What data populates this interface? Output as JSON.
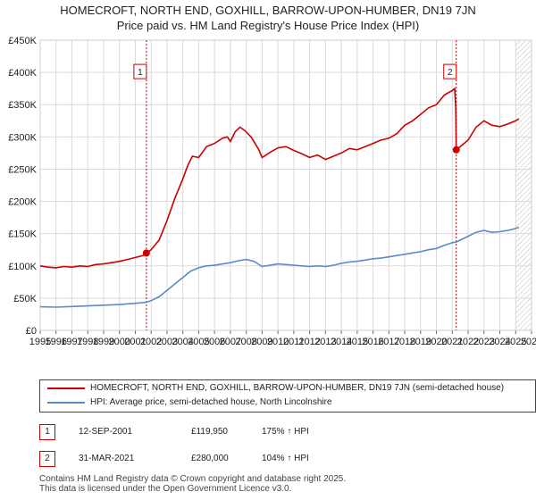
{
  "chart_data": {
    "type": "line",
    "title": "HOMECROFT, NORTH END, GOXHILL, BARROW-UPON-HUMBER, DN19 7JN",
    "subtitle": "Price paid vs. HM Land Registry's House Price Index (HPI)",
    "xlim": [
      1995,
      2026
    ],
    "ylim": [
      0,
      450000
    ],
    "x_ticks": [
      "1995",
      "1996",
      "1997",
      "1998",
      "1999",
      "2000",
      "2001",
      "2002",
      "2003",
      "2004",
      "2005",
      "2006",
      "2007",
      "2008",
      "2009",
      "2010",
      "2011",
      "2012",
      "2013",
      "2014",
      "2015",
      "2016",
      "2017",
      "2018",
      "2019",
      "2020",
      "2021",
      "2022",
      "2023",
      "2024",
      "2025",
      "2026"
    ],
    "y_ticks": [
      {
        "value": 0,
        "label": "£0"
      },
      {
        "value": 50000,
        "label": "£50K"
      },
      {
        "value": 100000,
        "label": "£100K"
      },
      {
        "value": 150000,
        "label": "£150K"
      },
      {
        "value": 200000,
        "label": "£200K"
      },
      {
        "value": 250000,
        "label": "£250K"
      },
      {
        "value": 300000,
        "label": "£300K"
      },
      {
        "value": 350000,
        "label": "£350K"
      },
      {
        "value": 400000,
        "label": "£400K"
      },
      {
        "value": 450000,
        "label": "£450K"
      }
    ],
    "grid": true,
    "forecast_from": 2025.0,
    "series": [
      {
        "name": "HOMECROFT, NORTH END, GOXHILL, BARROW-UPON-HUMBER, DN19 7JN (semi-detached house)",
        "color": "#cc0000",
        "points": [
          [
            1995.0,
            100000
          ],
          [
            1995.5,
            98000
          ],
          [
            1996.0,
            97000
          ],
          [
            1996.5,
            99000
          ],
          [
            1997.0,
            98000
          ],
          [
            1997.5,
            100000
          ],
          [
            1998.0,
            99000
          ],
          [
            1998.5,
            102000
          ],
          [
            1999.0,
            103000
          ],
          [
            1999.5,
            105000
          ],
          [
            2000.0,
            107000
          ],
          [
            2000.5,
            110000
          ],
          [
            2001.0,
            113000
          ],
          [
            2001.5,
            116000
          ],
          [
            2001.7,
            119950
          ],
          [
            2002.0,
            125000
          ],
          [
            2002.5,
            140000
          ],
          [
            2003.0,
            170000
          ],
          [
            2003.5,
            205000
          ],
          [
            2004.0,
            235000
          ],
          [
            2004.3,
            255000
          ],
          [
            2004.6,
            270000
          ],
          [
            2005.0,
            268000
          ],
          [
            2005.5,
            285000
          ],
          [
            2006.0,
            290000
          ],
          [
            2006.5,
            298000
          ],
          [
            2006.8,
            300000
          ],
          [
            2007.0,
            293000
          ],
          [
            2007.3,
            308000
          ],
          [
            2007.6,
            315000
          ],
          [
            2007.9,
            310000
          ],
          [
            2008.3,
            300000
          ],
          [
            2008.8,
            280000
          ],
          [
            2009.0,
            268000
          ],
          [
            2009.5,
            276000
          ],
          [
            2010.0,
            283000
          ],
          [
            2010.5,
            285000
          ],
          [
            2011.0,
            279000
          ],
          [
            2011.5,
            274000
          ],
          [
            2012.0,
            268000
          ],
          [
            2012.5,
            272000
          ],
          [
            2013.0,
            265000
          ],
          [
            2013.5,
            270000
          ],
          [
            2014.0,
            275000
          ],
          [
            2014.5,
            282000
          ],
          [
            2015.0,
            280000
          ],
          [
            2015.5,
            285000
          ],
          [
            2016.0,
            290000
          ],
          [
            2016.5,
            295000
          ],
          [
            2017.0,
            298000
          ],
          [
            2017.5,
            305000
          ],
          [
            2018.0,
            318000
          ],
          [
            2018.5,
            325000
          ],
          [
            2019.0,
            335000
          ],
          [
            2019.5,
            345000
          ],
          [
            2020.0,
            350000
          ],
          [
            2020.5,
            365000
          ],
          [
            2021.0,
            372000
          ],
          [
            2021.15,
            375000
          ],
          [
            2021.22,
            345000
          ],
          [
            2021.25,
            280000
          ],
          [
            2021.5,
            285000
          ],
          [
            2022.0,
            295000
          ],
          [
            2022.5,
            315000
          ],
          [
            2023.0,
            325000
          ],
          [
            2023.5,
            318000
          ],
          [
            2024.0,
            316000
          ],
          [
            2024.5,
            320000
          ],
          [
            2025.0,
            325000
          ],
          [
            2025.2,
            328000
          ]
        ]
      },
      {
        "name": "HPI: Average price, semi-detached house, North Lincolnshire",
        "color": "#5b8bc4",
        "points": [
          [
            1995.0,
            36500
          ],
          [
            1996.0,
            36000
          ],
          [
            1997.0,
            37000
          ],
          [
            1998.0,
            38000
          ],
          [
            1999.0,
            39000
          ],
          [
            2000.0,
            40000
          ],
          [
            2001.0,
            42000
          ],
          [
            2001.7,
            43600
          ],
          [
            2002.0,
            46000
          ],
          [
            2002.5,
            52000
          ],
          [
            2003.0,
            62000
          ],
          [
            2003.5,
            72000
          ],
          [
            2004.0,
            82000
          ],
          [
            2004.5,
            92000
          ],
          [
            2005.0,
            97000
          ],
          [
            2005.5,
            100000
          ],
          [
            2006.0,
            101000
          ],
          [
            2006.5,
            103000
          ],
          [
            2007.0,
            105000
          ],
          [
            2007.5,
            108000
          ],
          [
            2008.0,
            110000
          ],
          [
            2008.5,
            107000
          ],
          [
            2009.0,
            99000
          ],
          [
            2009.5,
            101000
          ],
          [
            2010.0,
            103000
          ],
          [
            2010.5,
            102000
          ],
          [
            2011.0,
            101000
          ],
          [
            2011.5,
            100000
          ],
          [
            2012.0,
            99000
          ],
          [
            2012.5,
            100000
          ],
          [
            2013.0,
            99000
          ],
          [
            2013.5,
            101000
          ],
          [
            2014.0,
            104000
          ],
          [
            2014.5,
            106000
          ],
          [
            2015.0,
            107000
          ],
          [
            2015.5,
            109000
          ],
          [
            2016.0,
            111000
          ],
          [
            2016.5,
            112000
          ],
          [
            2017.0,
            114000
          ],
          [
            2017.5,
            116000
          ],
          [
            2018.0,
            118000
          ],
          [
            2018.5,
            120000
          ],
          [
            2019.0,
            122000
          ],
          [
            2019.5,
            125000
          ],
          [
            2020.0,
            127000
          ],
          [
            2020.5,
            132000
          ],
          [
            2021.0,
            136000
          ],
          [
            2021.25,
            137000
          ],
          [
            2021.5,
            140000
          ],
          [
            2022.0,
            146000
          ],
          [
            2022.5,
            152000
          ],
          [
            2023.0,
            155000
          ],
          [
            2023.5,
            152000
          ],
          [
            2024.0,
            153000
          ],
          [
            2024.5,
            155000
          ],
          [
            2025.0,
            158000
          ],
          [
            2025.2,
            160000
          ]
        ]
      }
    ],
    "markers": [
      {
        "id": "1",
        "x": 2001.7,
        "y": 119950,
        "label_y": 400000
      },
      {
        "id": "2",
        "x": 2021.25,
        "y": 280000,
        "label_y": 400000
      }
    ]
  },
  "legend": {
    "red_label": "HOMECROFT, NORTH END, GOXHILL, BARROW-UPON-HUMBER, DN19 7JN (semi-detached house)",
    "blue_label": "HPI: Average price, semi-detached house, North Lincolnshire"
  },
  "sales": [
    {
      "id": "1",
      "date": "12-SEP-2001",
      "price": "£119,950",
      "hpi": "175% ↑ HPI"
    },
    {
      "id": "2",
      "date": "31-MAR-2021",
      "price": "£280,000",
      "hpi": "104% ↑ HPI"
    }
  ],
  "footer": {
    "line1": "Contains HM Land Registry data © Crown copyright and database right 2025.",
    "line2": "This data is licensed under the Open Government Licence v3.0."
  },
  "colors": {
    "red": "#cc0000",
    "blue": "#5b8bc4",
    "grid": "#d9d9d9",
    "marker_line": "#cc0000"
  }
}
